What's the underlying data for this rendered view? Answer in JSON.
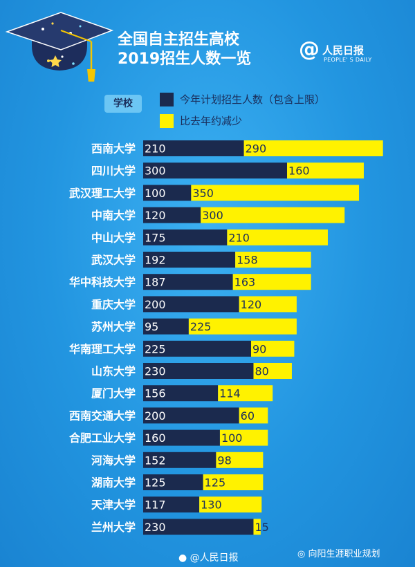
{
  "header": {
    "title_line1": "全国自主招生高校",
    "title_line2": "2019招生人数一览"
  },
  "logo": {
    "at": "@",
    "name": "人民日报",
    "english": "PEOPLE' S DAILY"
  },
  "colors": {
    "this_year": "#1b2a4e",
    "decrease": "#fff200",
    "background": "#2295e0"
  },
  "chart_data": {
    "type": "bar",
    "orientation": "horizontal",
    "stacked": true,
    "legend_title": "学校",
    "legend_position": "top",
    "categories": [
      "西南大学",
      "四川大学",
      "武汉理工大学",
      "中南大学",
      "中山大学",
      "武汉大学",
      "华中科技大学",
      "重庆大学",
      "苏州大学",
      "华南理工大学",
      "山东大学",
      "厦门大学",
      "西南交通大学",
      "合肥工业大学",
      "河海大学",
      "湖南大学",
      "天津大学",
      "兰州大学"
    ],
    "series": [
      {
        "name": "今年计划招生人数（包含上限）",
        "values": [
          210,
          300,
          100,
          120,
          175,
          192,
          187,
          200,
          95,
          225,
          230,
          156,
          200,
          160,
          152,
          125,
          117,
          230
        ]
      },
      {
        "name": "比去年约减少",
        "values": [
          290,
          160,
          350,
          300,
          210,
          158,
          163,
          120,
          225,
          90,
          80,
          114,
          60,
          100,
          98,
          125,
          130,
          15
        ]
      }
    ]
  },
  "watermarks": {
    "weibo": "@人民日报",
    "wechat": "向阳生涯职业规划"
  }
}
